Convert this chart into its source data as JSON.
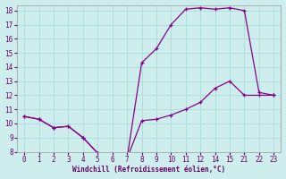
{
  "xlabel": "Windchill (Refroidissement éolien,°C)",
  "bg_color": "#cdeeed",
  "grid_color": "#b0dede",
  "line_color": "#880088",
  "xlim": [
    -0.5,
    17.5
  ],
  "ylim": [
    8,
    18.4
  ],
  "tick_labels": [
    "0",
    "1",
    "2",
    "3",
    "4",
    "5",
    "6",
    "7",
    "8",
    "9",
    "10",
    "11",
    "12",
    "14",
    "15",
    "21",
    "22",
    "23"
  ],
  "yticks": [
    8,
    9,
    10,
    11,
    12,
    13,
    14,
    15,
    16,
    17,
    18
  ],
  "line1_y": [
    10.5,
    10.3,
    9.7,
    9.8,
    9.0,
    7.9,
    7.5,
    7.5,
    10.2,
    10.3,
    10.6,
    11.0,
    11.5,
    12.5,
    13.0,
    12.0,
    12.0,
    12.0
  ],
  "line2_y": [
    10.5,
    10.3,
    9.7,
    9.8,
    9.0,
    7.9,
    7.5,
    7.5,
    14.3,
    15.3,
    17.0,
    18.1,
    18.2,
    18.1,
    18.2,
    18.0,
    12.2,
    12.0
  ]
}
